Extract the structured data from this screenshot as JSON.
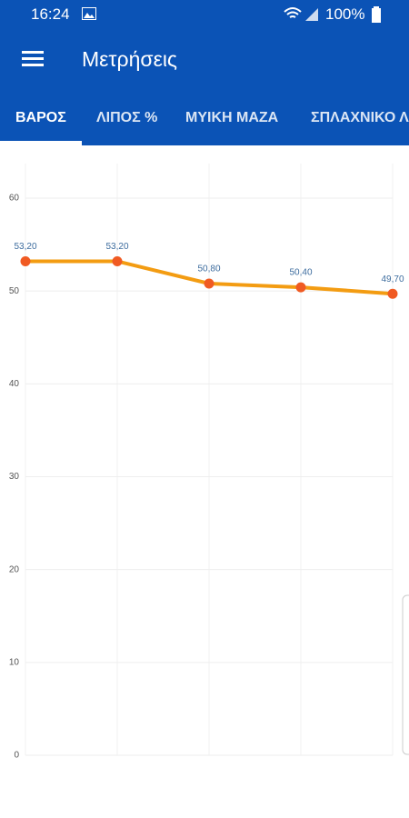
{
  "status_bar": {
    "time": "16:24",
    "battery": "100%"
  },
  "app_bar": {
    "title": "Μετρήσεις"
  },
  "tabs": [
    "ΒΑΡΟΣ",
    "ΛΙΠΟΣ %",
    "ΜΥΙΚΗ ΜΑΖΑ",
    "ΣΠΛΑΧΝΙΚΟ Λ"
  ],
  "chart_data": {
    "type": "line",
    "categories": [
      null,
      null,
      null,
      null,
      null
    ],
    "series": [
      {
        "name": null,
        "color": "#f39c12",
        "marker_color": "#f05a22",
        "values": [
          53.2,
          53.2,
          50.8,
          50.4,
          49.7
        ],
        "value_labels": [
          "53,20",
          "53,20",
          "50,80",
          "50,40",
          "49,70"
        ]
      }
    ],
    "ylim": [
      0,
      60
    ],
    "yticks": [
      0,
      10,
      20,
      30,
      40,
      50,
      60
    ],
    "grid": true
  }
}
